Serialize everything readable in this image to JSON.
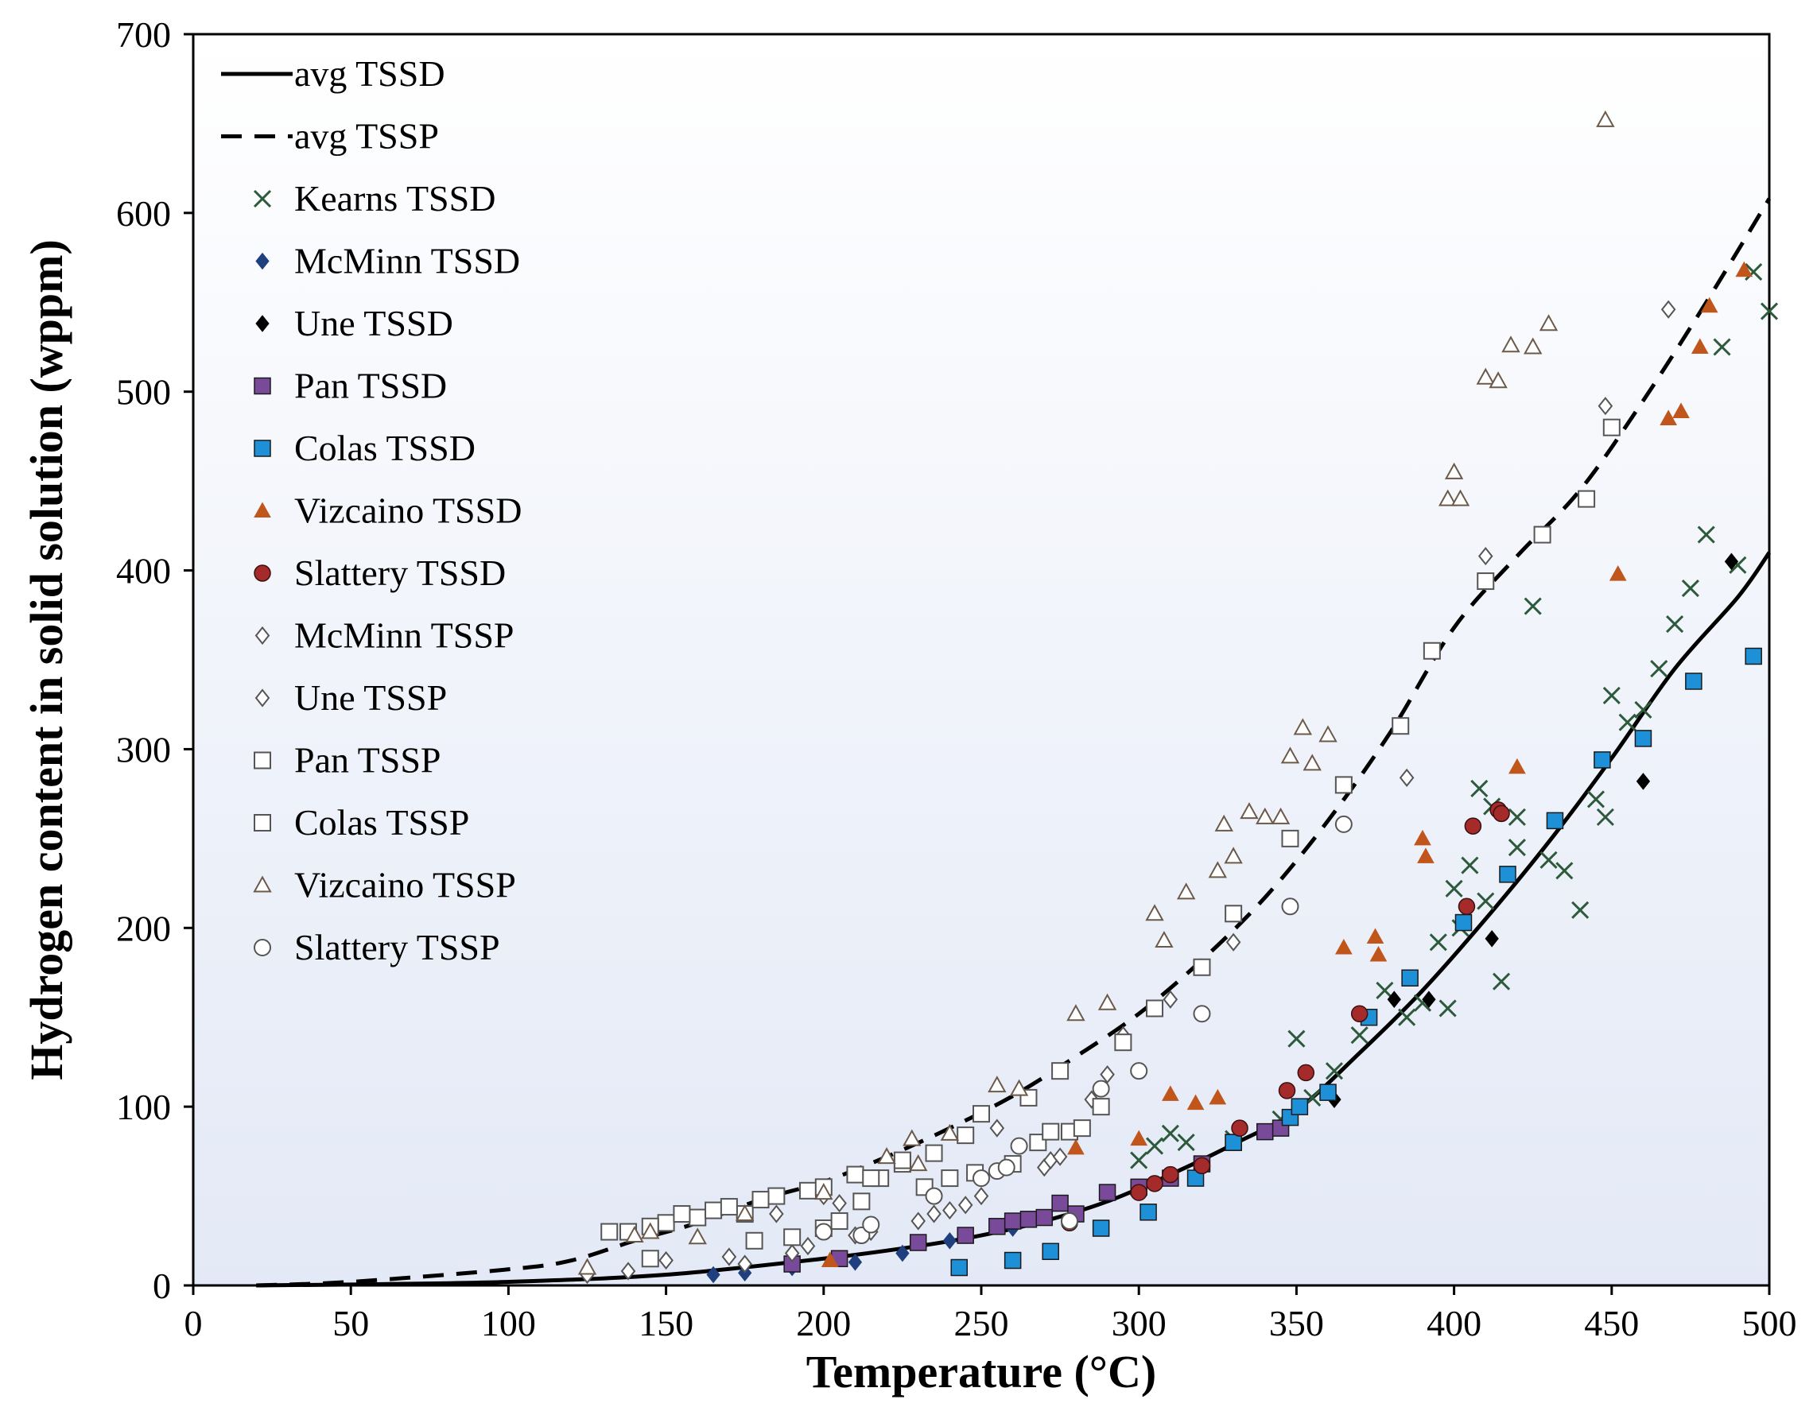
{
  "chart_data": {
    "type": "scatter",
    "title": "",
    "xlabel": "Temperature (°C)",
    "ylabel": "Hydrogen content in solid solution (wppm)",
    "xlim": [
      0,
      500
    ],
    "ylim": [
      0,
      700
    ],
    "x_ticks": [
      0,
      50,
      100,
      150,
      200,
      250,
      300,
      350,
      400,
      450,
      500
    ],
    "y_ticks": [
      0,
      100,
      200,
      300,
      400,
      500,
      600,
      700
    ],
    "grid": false,
    "legend_position": "top-left",
    "colors": {
      "background_gradient_top": "#ffffff",
      "background_gradient_bottom": "#e3e9f6",
      "kearns": "#2e5a3c",
      "vizcaino_tssd": "#c0561b",
      "slattery_tssd": "#a52a2a",
      "colas_tssd": "#1e90d8",
      "pan_tssd": "#7a4a9a",
      "black": "#000000",
      "open_marker": "#555555",
      "vizcaino_tssp": "#6b5a4a"
    },
    "series": [
      {
        "name": "avg TSSD",
        "kind": "line",
        "style": "solid",
        "x": [
          20,
          50,
          100,
          150,
          200,
          230,
          250,
          270,
          290,
          310,
          330,
          350,
          370,
          390,
          410,
          430,
          450,
          470,
          490,
          500
        ],
        "y": [
          0,
          0.5,
          2,
          6,
          15,
          22,
          28,
          36,
          47,
          62,
          79,
          98,
          130,
          165,
          205,
          248,
          295,
          345,
          385,
          410
        ]
      },
      {
        "name": "avg TSSP",
        "kind": "line",
        "style": "dashed",
        "x": [
          20,
          50,
          100,
          120,
          140,
          160,
          180,
          200,
          220,
          240,
          260,
          280,
          300,
          320,
          340,
          360,
          380,
          400,
          420,
          440,
          460,
          480,
          500
        ],
        "y": [
          0,
          2,
          9,
          14,
          25,
          35,
          48,
          58,
          72,
          88,
          106,
          128,
          152,
          182,
          217,
          260,
          310,
          368,
          408,
          445,
          495,
          550,
          608
        ]
      },
      {
        "name": "Kearns TSSD",
        "marker": "x",
        "x": [
          300,
          305,
          310,
          315,
          330,
          345,
          350,
          355,
          362,
          370,
          378,
          385,
          390,
          395,
          398,
          402,
          405,
          408,
          412,
          415,
          420,
          425,
          430,
          435,
          440,
          445,
          448,
          450,
          455,
          460,
          465,
          470,
          475,
          480,
          485,
          490,
          495,
          500,
          400,
          410,
          420
        ],
        "y": [
          70,
          78,
          85,
          80,
          82,
          93,
          138,
          105,
          120,
          140,
          165,
          150,
          158,
          192,
          155,
          200,
          235,
          278,
          268,
          170,
          245,
          380,
          238,
          232,
          210,
          272,
          262,
          330,
          315,
          322,
          345,
          370,
          390,
          420,
          525,
          403,
          567,
          545,
          222,
          215,
          262
        ]
      },
      {
        "name": "McMinn TSSD",
        "marker": "diamond-filled",
        "color": "#1f3f7f",
        "x": [
          165,
          175,
          190,
          210,
          225,
          240,
          260,
          270
        ],
        "y": [
          6,
          7,
          10,
          13,
          18,
          25,
          32,
          38
        ]
      },
      {
        "name": "Une TSSD",
        "marker": "diamond-filled",
        "color": "#000000",
        "x": [
          270,
          362,
          381,
          392,
          412,
          460,
          488
        ],
        "y": [
          38,
          104,
          160,
          160,
          194,
          282,
          405
        ]
      },
      {
        "name": "Pan TSSD",
        "marker": "square-filled",
        "color": "#7a4a9a",
        "x": [
          190,
          205,
          230,
          245,
          255,
          260,
          265,
          270,
          275,
          280,
          290,
          300,
          310,
          320,
          330,
          340,
          345
        ],
        "y": [
          12,
          15,
          24,
          28,
          33,
          36,
          37,
          38,
          46,
          40,
          52,
          55,
          60,
          68,
          80,
          86,
          88
        ]
      },
      {
        "name": "Colas TSSD",
        "marker": "square-filled",
        "color": "#1e90d8",
        "x": [
          243,
          260,
          272,
          288,
          303,
          318,
          330,
          348,
          351,
          360,
          373,
          386,
          403,
          417,
          432,
          447,
          460,
          476,
          495
        ],
        "y": [
          10,
          14,
          19,
          32,
          41,
          60,
          80,
          94,
          100,
          108,
          150,
          172,
          203,
          230,
          260,
          294,
          306,
          338,
          352
        ]
      },
      {
        "name": "Vizcaino TSSD",
        "marker": "triangle-filled",
        "color": "#c0561b",
        "x": [
          202,
          280,
          300,
          310,
          318,
          325,
          365,
          375,
          376,
          390,
          391,
          420,
          452,
          468,
          472,
          478,
          481,
          492
        ],
        "y": [
          14,
          77,
          82,
          107,
          102,
          105,
          189,
          195,
          185,
          250,
          240,
          290,
          398,
          485,
          489,
          525,
          548,
          568
        ]
      },
      {
        "name": "Slattery TSSD",
        "marker": "circle-filled",
        "color": "#a52a2a",
        "x": [
          278,
          300,
          305,
          310,
          320,
          332,
          347,
          353,
          370,
          404,
          406,
          414,
          415
        ],
        "y": [
          35,
          52,
          57,
          62,
          67,
          88,
          109,
          119,
          152,
          212,
          257,
          266,
          264
        ]
      },
      {
        "name": "McMinn TSSP",
        "marker": "diamond-open",
        "x": [
          125,
          138,
          150,
          170,
          175,
          185,
          190,
          195,
          200,
          205,
          210,
          215,
          230,
          235,
          240,
          245,
          250,
          255,
          270,
          272,
          275,
          285,
          290,
          295,
          310,
          330,
          385,
          410,
          448,
          468
        ],
        "y": [
          6,
          8,
          14,
          16,
          12,
          40,
          18,
          22,
          50,
          46,
          28,
          30,
          36,
          40,
          42,
          45,
          50,
          88,
          66,
          70,
          72,
          104,
          118,
          140,
          160,
          192,
          284,
          408,
          492,
          546
        ]
      },
      {
        "name": "Une TSSP",
        "marker": "diamond-open",
        "x": [],
        "y": []
      },
      {
        "name": "Pan TSSP",
        "marker": "square-open",
        "x": [
          138,
          145,
          150,
          160,
          165,
          175,
          178,
          185,
          190,
          195,
          200,
          205,
          212,
          218,
          225,
          232,
          240,
          248,
          260,
          268,
          272,
          278,
          282,
          288,
          295,
          305,
          320,
          330,
          348,
          365,
          383,
          393,
          410,
          428,
          442,
          450
        ],
        "y": [
          30,
          15,
          35,
          38,
          42,
          40,
          25,
          50,
          27,
          53,
          32,
          36,
          47,
          60,
          68,
          55,
          60,
          63,
          68,
          80,
          86,
          86,
          88,
          100,
          136,
          155,
          178,
          208,
          250,
          280,
          313,
          355,
          394,
          420,
          440,
          480
        ]
      },
      {
        "name": "Colas TSSP",
        "marker": "square-open",
        "x": [
          132,
          145,
          155,
          170,
          180,
          200,
          210,
          215,
          225,
          235,
          245,
          250,
          265,
          275
        ],
        "y": [
          30,
          33,
          40,
          44,
          48,
          55,
          62,
          60,
          70,
          74,
          84,
          96,
          105,
          120
        ]
      },
      {
        "name": "Vizcaino TSSP",
        "marker": "triangle-open",
        "x": [
          125,
          140,
          145,
          160,
          175,
          200,
          220,
          228,
          230,
          240,
          255,
          262,
          280,
          290,
          305,
          308,
          315,
          325,
          327,
          330,
          335,
          340,
          345,
          348,
          352,
          355,
          360,
          398,
          400,
          402,
          410,
          414,
          418,
          425,
          430,
          448
        ],
        "y": [
          10,
          28,
          30,
          27,
          40,
          52,
          72,
          82,
          68,
          85,
          112,
          110,
          152,
          158,
          208,
          193,
          220,
          232,
          258,
          240,
          265,
          262,
          262,
          296,
          312,
          292,
          308,
          440,
          455,
          440,
          508,
          506,
          526,
          525,
          538,
          652
        ]
      },
      {
        "name": "Slattery TSSP",
        "marker": "circle-open",
        "x": [
          200,
          212,
          215,
          235,
          250,
          255,
          258,
          262,
          278,
          288,
          300,
          320,
          348,
          365
        ],
        "y": [
          30,
          28,
          34,
          50,
          60,
          64,
          66,
          78,
          36,
          110,
          120,
          152,
          212,
          258
        ]
      }
    ]
  }
}
